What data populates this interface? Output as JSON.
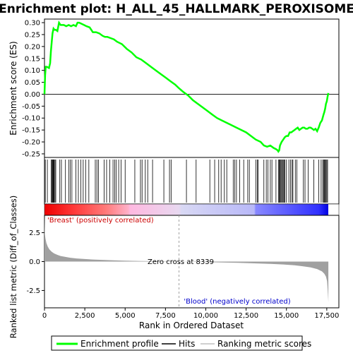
{
  "chart_data": {
    "type": "line",
    "title": "Enrichment plot: H_ALL_45_HALLMARK_PEROXISOME",
    "es_panel": {
      "ylabel": "Enrichment score (ES)",
      "ylim": [
        -0.265,
        0.315
      ],
      "yticks": [
        "0.30",
        "0.25",
        "0.20",
        "0.15",
        "0.10",
        "0.05",
        "0.00",
        "-0.05",
        "-0.10",
        "-0.15",
        "-0.20",
        "-0.25"
      ],
      "ytick_values": [
        0.3,
        0.25,
        0.2,
        0.15,
        0.1,
        0.05,
        0.0,
        -0.05,
        -0.1,
        -0.15,
        -0.2,
        -0.25
      ],
      "series": [
        {
          "name": "Enrichment profile",
          "color": "#00ff00",
          "x": [
            0,
            40,
            80,
            150,
            280,
            350,
            400,
            450,
            500,
            560,
            620,
            700,
            800,
            900,
            950,
            1000,
            1100,
            1200,
            1350,
            1500,
            1650,
            1800,
            1950,
            2050,
            2150,
            2300,
            2450,
            2600,
            2800,
            3000,
            3200,
            3400,
            3600,
            3750,
            3900,
            4100,
            4300,
            4500,
            4800,
            5100,
            5400,
            5700,
            6000,
            6300,
            6600,
            6900,
            7200,
            7500,
            7800,
            8100,
            8339,
            8600,
            8900,
            9200,
            9500,
            9800,
            10100,
            10400,
            10700,
            11000,
            11300,
            11600,
            11900,
            12200,
            12500,
            12800,
            13100,
            13400,
            13600,
            13800,
            14000,
            14200,
            14350,
            14450,
            14500,
            14550,
            14600,
            14700,
            14800,
            14900,
            15000,
            15100,
            15200,
            15300,
            15400,
            15500,
            15600,
            15700,
            15800,
            15900,
            16000,
            16100,
            16200,
            16300,
            16400,
            16500,
            16600,
            16700,
            16800,
            16900,
            17000,
            17100,
            17200,
            17300,
            17350,
            17400,
            17450,
            17500,
            17550,
            17600
          ],
          "y": [
            0.0,
            0.08,
            0.115,
            0.115,
            0.11,
            0.13,
            0.18,
            0.22,
            0.255,
            0.275,
            0.27,
            0.27,
            0.265,
            0.3,
            0.295,
            0.29,
            0.29,
            0.29,
            0.285,
            0.29,
            0.285,
            0.29,
            0.285,
            0.3,
            0.3,
            0.295,
            0.29,
            0.285,
            0.28,
            0.26,
            0.26,
            0.255,
            0.245,
            0.24,
            0.24,
            0.235,
            0.23,
            0.22,
            0.21,
            0.19,
            0.175,
            0.155,
            0.145,
            0.13,
            0.115,
            0.1,
            0.085,
            0.07,
            0.055,
            0.04,
            0.025,
            0.01,
            -0.005,
            -0.025,
            -0.04,
            -0.055,
            -0.07,
            -0.085,
            -0.1,
            -0.11,
            -0.12,
            -0.13,
            -0.14,
            -0.15,
            -0.16,
            -0.175,
            -0.19,
            -0.2,
            -0.215,
            -0.22,
            -0.215,
            -0.225,
            -0.23,
            -0.235,
            -0.24,
            -0.235,
            -0.215,
            -0.2,
            -0.19,
            -0.18,
            -0.175,
            -0.175,
            -0.16,
            -0.16,
            -0.155,
            -0.15,
            -0.145,
            -0.14,
            -0.15,
            -0.145,
            -0.14,
            -0.14,
            -0.145,
            -0.145,
            -0.14,
            -0.14,
            -0.145,
            -0.15,
            -0.145,
            -0.155,
            -0.14,
            -0.12,
            -0.11,
            -0.085,
            -0.075,
            -0.06,
            -0.04,
            -0.03,
            -0.01,
            0.005
          ]
        }
      ]
    },
    "hits_panel": {
      "label": "Hits",
      "color": "#000000",
      "positions": [
        50,
        180,
        420,
        470,
        500,
        530,
        560,
        600,
        650,
        700,
        950,
        1050,
        1300,
        1500,
        1600,
        1700,
        1950,
        2100,
        2250,
        2400,
        2550,
        2750,
        3150,
        3250,
        3350,
        3700,
        3850,
        4050,
        4250,
        4350,
        4450,
        4600,
        4750,
        5000,
        5600,
        5950,
        6050,
        6250,
        6400,
        6700,
        7400,
        7750,
        7850,
        8800,
        9400,
        10250,
        10550,
        10800,
        10950,
        11150,
        11300,
        11700,
        11800,
        11900,
        12100,
        12350,
        12600,
        12700,
        13100,
        13200,
        13250,
        13600,
        13750,
        13850,
        14000,
        14100,
        14350,
        14500,
        14550,
        14600,
        14650,
        14700,
        14750,
        14800,
        14850,
        14900,
        15000,
        15150,
        15250,
        15350,
        15400,
        15550,
        15650,
        16050,
        16150,
        16350,
        16700,
        17000,
        17150,
        17250,
        17300,
        17350,
        17400,
        17450,
        17500,
        17550
      ]
    },
    "rank_panel": {
      "ylabel": "Ranked list metric (Diff_of_Classes)",
      "xlabel": "Rank in Ordered Dataset",
      "xlim": [
        0,
        18250
      ],
      "ylim": [
        -4.0,
        4.0
      ],
      "yticks": [
        "2.5",
        "0.0",
        "-2.5"
      ],
      "ytick_values": [
        2.5,
        0.0,
        -2.5
      ],
      "xticks": [
        "0",
        "2,500",
        "5,000",
        "7,500",
        "10,000",
        "12,500",
        "15,000",
        "17,500"
      ],
      "xtick_values": [
        0,
        2500,
        5000,
        7500,
        10000,
        12500,
        15000,
        17500
      ],
      "total_ranks": 17600,
      "zero_cross": 8339,
      "metric_x": [
        0,
        20,
        60,
        120,
        200,
        300,
        450,
        600,
        800,
        1000,
        1300,
        1600,
        2000,
        2500,
        3000,
        4000,
        5000,
        6000,
        7000,
        8000,
        8339,
        9000,
        10000,
        11000,
        12000,
        13000,
        14000,
        14800,
        15500,
        16000,
        16500,
        16900,
        17200,
        17350,
        17450,
        17520,
        17560,
        17600
      ],
      "metric_y": [
        3.9,
        2.4,
        2.0,
        1.6,
        1.3,
        1.05,
        0.85,
        0.7,
        0.58,
        0.48,
        0.4,
        0.33,
        0.27,
        0.22,
        0.18,
        0.12,
        0.08,
        0.05,
        0.03,
        0.01,
        0.0,
        -0.02,
        -0.05,
        -0.08,
        -0.11,
        -0.15,
        -0.2,
        -0.25,
        -0.32,
        -0.4,
        -0.5,
        -0.65,
        -0.85,
        -1.05,
        -1.3,
        -1.7,
        -2.5,
        -3.5
      ],
      "metric_color": "#a0a0a0",
      "positive_label": "'Breast' (positively correlated)",
      "positive_color": "#cc0000",
      "negative_label": "'Blood' (negatively correlated)",
      "negative_color": "#0000cc",
      "zero_cross_label": "Zero cross at 8339"
    },
    "heat_bar": {
      "stops": [
        {
          "x": 0,
          "color": "#ee0000"
        },
        {
          "x": 1800,
          "color": "#ff3838"
        },
        {
          "x": 3800,
          "color": "#ff7a7a"
        },
        {
          "x": 5200,
          "color": "#ffb0c8"
        },
        {
          "x": 5300,
          "color": "#ffb8e0"
        },
        {
          "x": 8339,
          "color": "#e8d8f0"
        },
        {
          "x": 8500,
          "color": "#d8d8f4"
        },
        {
          "x": 13000,
          "color": "#b8b8f8"
        },
        {
          "x": 13100,
          "color": "#8888ff"
        },
        {
          "x": 14400,
          "color": "#6a6aff"
        },
        {
          "x": 17000,
          "color": "#3030ff"
        },
        {
          "x": 17600,
          "color": "#0000e0"
        }
      ]
    },
    "legend": {
      "items": [
        {
          "label": "Enrichment profile",
          "color": "#00ff00",
          "kind": "line"
        },
        {
          "label": "Hits",
          "color": "#000000",
          "kind": "line"
        },
        {
          "label": "Ranking metric scores",
          "color": "#c0c0c0",
          "kind": "line"
        }
      ]
    }
  }
}
